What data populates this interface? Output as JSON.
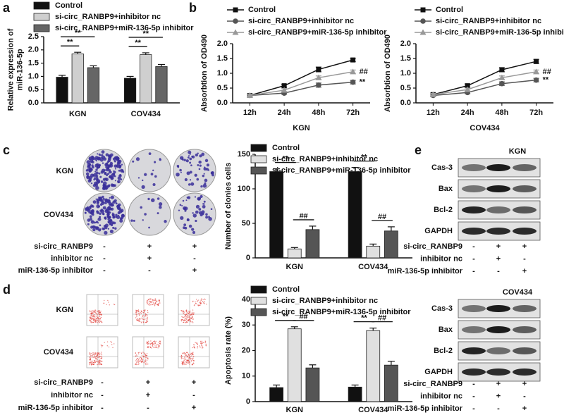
{
  "panels": {
    "labels": [
      "a",
      "b",
      "c",
      "d",
      "e"
    ],
    "c": {
      "rows": [
        "KGN",
        "COV434"
      ],
      "table": [
        {
          "label": "si-circ_RANBP9",
          "signs": [
            "-",
            "+",
            "+"
          ]
        },
        {
          "label": "inhibitor nc",
          "signs": [
            "-",
            "+",
            "-"
          ]
        },
        {
          "label": "miR-136-5p inhibitor",
          "signs": [
            "-",
            "-",
            "+"
          ]
        }
      ]
    },
    "d": {
      "rows": [
        "KGN",
        "COV434"
      ],
      "table": [
        {
          "label": "si-circ_RANBP9",
          "signs": [
            "-",
            "+",
            "+"
          ]
        },
        {
          "label": "inhibitor nc",
          "signs": [
            "-",
            "+",
            "-"
          ]
        },
        {
          "label": "miR-136-5p inhibitor",
          "signs": [
            "-",
            "-",
            "+"
          ]
        }
      ]
    },
    "e": [
      {
        "title": "KGN",
        "proteins": [
          "Cas-3",
          "Bax",
          "Bcl-2",
          "GAPDH"
        ],
        "table": [
          {
            "label": "si-circ_RANBP9",
            "signs": [
              "-",
              "+",
              "+"
            ]
          },
          {
            "label": "inhibitor nc",
            "signs": [
              "-",
              "+",
              "-"
            ]
          },
          {
            "label": "miR-136-5p inhibitor",
            "signs": [
              "-",
              "-",
              "+"
            ]
          }
        ]
      },
      {
        "title": "COV434",
        "proteins": [
          "Cas-3",
          "Bax",
          "Bcl-2",
          "GAPDH"
        ],
        "table": [
          {
            "label": "si-circ_RANBP9",
            "signs": [
              "-",
              "+",
              "+"
            ]
          },
          {
            "label": "inhibitor nc",
            "signs": [
              "-",
              "+",
              "-"
            ]
          },
          {
            "label": "miR-136-5p inhibitor",
            "signs": [
              "-",
              "-",
              "+"
            ]
          }
        ]
      }
    ]
  },
  "chart_data": [
    {
      "type": "bar",
      "y_label": [
        "Relative expression of",
        "miR-136-5p"
      ],
      "categories": [
        "KGN",
        "COV434"
      ],
      "series": [
        {
          "name": "Control",
          "color": "#111111",
          "values": [
            0.97,
            0.93
          ],
          "errors": [
            0.07,
            0.07
          ]
        },
        {
          "name": "si-circ_RANBP9+inhibitor nc",
          "color": "#cfcfcf",
          "values": [
            1.85,
            1.82
          ],
          "errors": [
            0.06,
            0.07
          ]
        },
        {
          "name": "si-circ_RANBP9+miR-136-5p inhibitor",
          "color": "#666666",
          "values": [
            1.33,
            1.37
          ],
          "errors": [
            0.07,
            0.08
          ]
        }
      ],
      "ylim": [
        0,
        2.5
      ],
      "yticks": [
        {
          "value": 0,
          "label": "0.0"
        },
        0.5,
        {
          "value": 1,
          "label": "1.0"
        },
        1.5,
        {
          "value": 2,
          "label": "2.0"
        },
        2.5
      ],
      "brackets": [
        {
          "category": 0,
          "series": [
            0,
            1
          ],
          "label": "**"
        },
        {
          "category": 0,
          "series": [
            0,
            2
          ],
          "label": "**"
        },
        {
          "category": 1,
          "series": [
            0,
            1
          ],
          "label": "**"
        },
        {
          "category": 1,
          "series": [
            0,
            2
          ],
          "label": "**"
        }
      ]
    },
    {
      "type": "line",
      "x_label": "KGN",
      "y_label": "Absorbtion of OD490",
      "categories": [
        "12h",
        "24h",
        "48h",
        "72h"
      ],
      "series": [
        {
          "name": "Control",
          "color": "#111111",
          "marker": "square",
          "values": [
            0.25,
            0.58,
            1.13,
            1.45
          ],
          "errors": [
            0.05,
            0.05,
            0.08,
            0.06
          ]
        },
        {
          "name": "si-circ_RANBP9+inhibitor nc",
          "color": "#555555",
          "marker": "circle",
          "values": [
            0.25,
            0.33,
            0.6,
            0.7
          ],
          "errors": [
            0.04,
            0.04,
            0.07,
            0.06
          ],
          "end_label": "**"
        },
        {
          "name": "si-circ_RANBP9+miR-136-5p inhibitor",
          "color": "#999999",
          "marker": "triangle",
          "values": [
            0.25,
            0.43,
            0.85,
            1.05
          ],
          "errors": [
            0.04,
            0.05,
            0.06,
            0.06
          ],
          "end_label": "##"
        }
      ],
      "ylim": [
        0,
        2
      ],
      "yticks": [
        {
          "value": 0,
          "label": "0.0"
        },
        0.5,
        {
          "value": 1,
          "label": "1.0"
        },
        1.5,
        {
          "value": 2,
          "label": "2.0"
        }
      ]
    },
    {
      "type": "line",
      "x_label": "COV434",
      "y_label": "Absorbtion of OD490",
      "categories": [
        "12h",
        "24h",
        "48h",
        "72h"
      ],
      "series": [
        {
          "name": "Control",
          "color": "#111111",
          "marker": "square",
          "values": [
            0.28,
            0.58,
            1.12,
            1.4
          ],
          "errors": [
            0.05,
            0.06,
            0.07,
            0.07
          ]
        },
        {
          "name": "si-circ_RANBP9+inhibitor nc",
          "color": "#555555",
          "marker": "circle",
          "values": [
            0.25,
            0.35,
            0.65,
            0.77
          ],
          "errors": [
            0.04,
            0.04,
            0.06,
            0.06
          ],
          "end_label": "**"
        },
        {
          "name": "si-circ_RANBP9+miR-136-5p inhibitor",
          "color": "#999999",
          "marker": "triangle",
          "values": [
            0.28,
            0.45,
            0.85,
            1.05
          ],
          "errors": [
            0.04,
            0.05,
            0.06,
            0.06
          ],
          "end_label": "##"
        }
      ],
      "ylim": [
        0,
        2
      ],
      "yticks": [
        {
          "value": 0,
          "label": "0.0"
        },
        0.5,
        {
          "value": 1,
          "label": "1.0"
        },
        1.5,
        {
          "value": 2,
          "label": "2.0"
        }
      ]
    },
    {
      "type": "bar",
      "y_label": [
        "Number of clonies cells"
      ],
      "categories": [
        "KGN",
        "COV434"
      ],
      "series": [
        {
          "name": "Control",
          "color": "#111111",
          "values": [
            125,
            125
          ],
          "errors": [
            4,
            6
          ]
        },
        {
          "name": "si-circ_RANBP9+inhibitor nc",
          "color": "#e0e0e0",
          "values": [
            13,
            17
          ],
          "errors": [
            2,
            3
          ]
        },
        {
          "name": "si-circ_RANBP9+miR-136-5p inhibitor",
          "color": "#555555",
          "values": [
            41,
            39
          ],
          "errors": [
            5,
            6
          ]
        }
      ],
      "ylim": [
        0,
        150
      ],
      "yticks": [
        0,
        50,
        100,
        150
      ],
      "brackets": [
        {
          "category": 0,
          "series": [
            0,
            1
          ],
          "label": "**"
        },
        {
          "category": 0,
          "series": [
            1,
            2
          ],
          "label": "##"
        },
        {
          "category": 1,
          "series": [
            0,
            1
          ],
          "label": "**"
        },
        {
          "category": 1,
          "series": [
            1,
            2
          ],
          "label": "##"
        }
      ]
    },
    {
      "type": "bar",
      "y_label": [
        "Apoptosis rate (%)"
      ],
      "categories": [
        "KGN",
        "COV434"
      ],
      "series": [
        {
          "name": "Control",
          "color": "#111111",
          "values": [
            5.5,
            5.7
          ],
          "errors": [
            1,
            0.8
          ]
        },
        {
          "name": "si-circ_RANBP9+inhibitor nc",
          "color": "#e0e0e0",
          "values": [
            28.5,
            27.8
          ],
          "errors": [
            0.8,
            1
          ]
        },
        {
          "name": "si-circ_RANBP9+miR-136-5p inhibitor",
          "color": "#555555",
          "values": [
            13.2,
            14.3
          ],
          "errors": [
            1.2,
            1.5
          ]
        }
      ],
      "ylim": [
        0,
        40
      ],
      "yticks": [
        0,
        10,
        20,
        30,
        40
      ],
      "brackets": [
        {
          "category": 0,
          "series": [
            0,
            1
          ],
          "label": "**"
        },
        {
          "category": 0,
          "series": [
            1,
            2
          ],
          "label": "##"
        },
        {
          "category": 1,
          "series": [
            0,
            1
          ],
          "label": "**"
        },
        {
          "category": 1,
          "series": [
            1,
            2
          ],
          "label": "##"
        }
      ]
    }
  ]
}
